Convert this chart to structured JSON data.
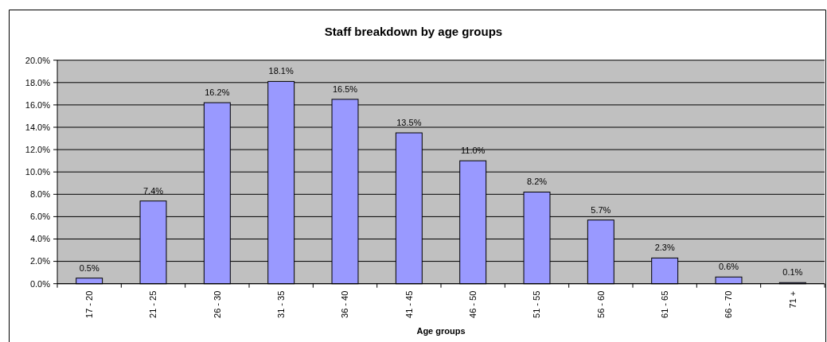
{
  "chart_data": {
    "type": "bar",
    "title": "Staff breakdown by age groups",
    "xlabel": "Age groups",
    "categories": [
      "17 - 20",
      "21 - 25",
      "26 - 30",
      "31 - 35",
      "36 - 40",
      "41 - 45",
      "46 - 50",
      "51 - 55",
      "56 - 60",
      "61 - 65",
      "66 - 70",
      "71 +"
    ],
    "values": [
      0.5,
      7.4,
      16.2,
      18.1,
      16.5,
      13.5,
      11.0,
      8.2,
      5.7,
      2.3,
      0.6,
      0.1
    ],
    "value_labels": [
      "0.5%",
      "7.4%",
      "16.2%",
      "18.1%",
      "16.5%",
      "13.5%",
      "11.0%",
      "8.2%",
      "5.7%",
      "2.3%",
      "0.6%",
      "0.1%"
    ],
    "color": "#9999ff",
    "ylim": [
      0,
      20
    ],
    "yticks": [
      {
        "value": 0,
        "label": "0.0%"
      },
      {
        "value": 2,
        "label": "2.0%"
      },
      {
        "value": 4,
        "label": "4.0%"
      },
      {
        "value": 6,
        "label": "6.0%"
      },
      {
        "value": 8,
        "label": "8.0%"
      },
      {
        "value": 10,
        "label": "10.0%"
      },
      {
        "value": 12,
        "label": "12.0%"
      },
      {
        "value": 14,
        "label": "14.0%"
      },
      {
        "value": 16,
        "label": "16.0%"
      },
      {
        "value": 18,
        "label": "18.0%"
      },
      {
        "value": 20,
        "label": "20.0%"
      }
    ],
    "grid": "y"
  }
}
